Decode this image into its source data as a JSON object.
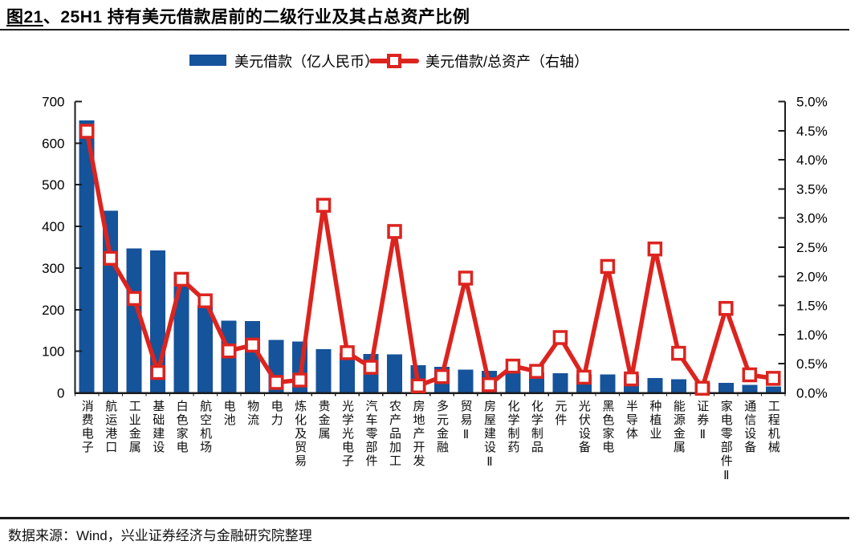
{
  "title": {
    "prefix": "图21",
    "rest": "、25H1 持有美元借款居前的二级行业及其占总资产比例"
  },
  "legend": {
    "bars": "美元借款（亿人民币）",
    "line": "美元借款/总资产（右轴）"
  },
  "footer": {
    "source": "数据来源：Wind，兴业证券经济与金融研究院整理"
  },
  "colors": {
    "bar": "#15539b",
    "line": "#dc241f",
    "axis": "#1c1c1c"
  },
  "chart_data": {
    "type": "bar",
    "subtype": "bar+line dual axis",
    "title": "25H1 持有美元借款居前的二级行业及其占总资产比例",
    "categories": [
      "消费电子",
      "航运港口",
      "工业金属",
      "基础建设",
      "白色家电",
      "航空机场",
      "电池",
      "物流",
      "电力",
      "炼化及贸易",
      "贵金属",
      "光学光电子",
      "汽车零部件",
      "农产品加工",
      "房地产开发",
      "多元金融",
      "贸易Ⅱ",
      "房屋建设Ⅱ",
      "化学制药",
      "化学制品",
      "元件",
      "光伏设备",
      "黑色家电",
      "半导体",
      "种植业",
      "能源金属",
      "证券Ⅱ",
      "家电零部件Ⅱ",
      "通信设备",
      "工程机械"
    ],
    "series": [
      {
        "name": "美元借款（亿人民币）",
        "type": "bar",
        "axis": "left",
        "values": [
          655,
          438,
          347,
          342,
          290,
          210,
          174,
          173,
          127,
          123,
          105,
          95,
          94,
          93,
          67,
          63,
          56,
          53,
          51,
          49,
          47,
          44,
          44,
          42,
          36,
          33,
          25,
          24,
          19,
          15
        ]
      },
      {
        "name": "美元借款/总资产（右轴）",
        "type": "line",
        "axis": "right",
        "values": [
          4.49,
          2.31,
          1.62,
          0.35,
          1.95,
          1.58,
          0.72,
          0.82,
          0.18,
          0.22,
          3.22,
          0.69,
          0.44,
          2.77,
          0.12,
          0.28,
          1.97,
          0.14,
          0.46,
          0.37,
          0.95,
          0.27,
          2.17,
          0.24,
          2.47,
          0.68,
          0.08,
          1.45,
          0.31,
          0.25
        ]
      }
    ],
    "left_axis": {
      "min": 0,
      "max": 700,
      "tick_labels": [
        "0",
        "100",
        "200",
        "300",
        "400",
        "500",
        "600",
        "700"
      ]
    },
    "right_axis": {
      "min": 0,
      "max": 5,
      "tick_labels": [
        "0.0%",
        "0.5%",
        "1.0%",
        "1.5%",
        "2.0%",
        "2.5%",
        "3.0%",
        "3.5%",
        "4.0%",
        "4.5%",
        "5.0%"
      ]
    },
    "grid": false,
    "legend_position": "top"
  }
}
